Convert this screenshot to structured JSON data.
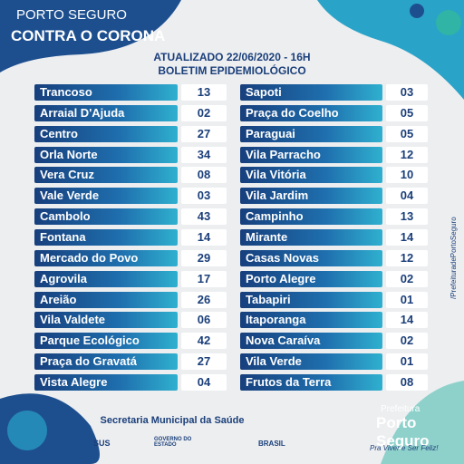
{
  "header": {
    "brand": "PORTO SEGURO",
    "campaign": "CONTRA O CORONA"
  },
  "bulletin": {
    "updated": "ATUALIZADO 22/06/2020 - 16H",
    "title": "BOLETIM EPIDEMIOLÓGICO"
  },
  "table": {
    "left": [
      [
        "Trancoso",
        "13"
      ],
      [
        "Arraial D'Ajuda",
        "02"
      ],
      [
        "Centro",
        "27"
      ],
      [
        "Orla Norte",
        "34"
      ],
      [
        "Vera Cruz",
        "08"
      ],
      [
        "Vale Verde",
        "03"
      ],
      [
        "Cambolo",
        "43"
      ],
      [
        "Fontana",
        "14"
      ],
      [
        "Mercado do Povo",
        "29"
      ],
      [
        "Agrovila",
        "17"
      ],
      [
        "Areião",
        "26"
      ],
      [
        "Vila Valdete",
        "06"
      ],
      [
        "Parque Ecológico",
        "42"
      ],
      [
        "Praça do Gravatá",
        "27"
      ],
      [
        "Vista Alegre",
        "04"
      ]
    ],
    "right": [
      [
        "Sapoti",
        "03"
      ],
      [
        "Praça do Coelho",
        "05"
      ],
      [
        "Paraguai",
        "05"
      ],
      [
        "Vila Parracho",
        "12"
      ],
      [
        "Vila Vitória",
        "10"
      ],
      [
        "Vila Jardim",
        "04"
      ],
      [
        "Campinho",
        "13"
      ],
      [
        "Mirante",
        "14"
      ],
      [
        "Casas Novas",
        "12"
      ],
      [
        "Porto Alegre",
        "02"
      ],
      [
        "Tabapiri",
        "01"
      ],
      [
        "Itaporanga",
        "14"
      ],
      [
        "Nova Caraíva",
        "02"
      ],
      [
        "Vila Verde",
        "01"
      ],
      [
        "Frutos da Terra",
        "08"
      ]
    ]
  },
  "side": {
    "social": "/PrefeituradePortoSeguro"
  },
  "footer": {
    "department": "Secretaria Municipal da Saúde",
    "sus": "SUS",
    "state": "GOVERNO DO ESTADO",
    "federal": "BRASIL",
    "city_label": "Prefeitura",
    "city_name": "Porto Seguro",
    "slogan": "Pra Viver e Ser Feliz!"
  }
}
